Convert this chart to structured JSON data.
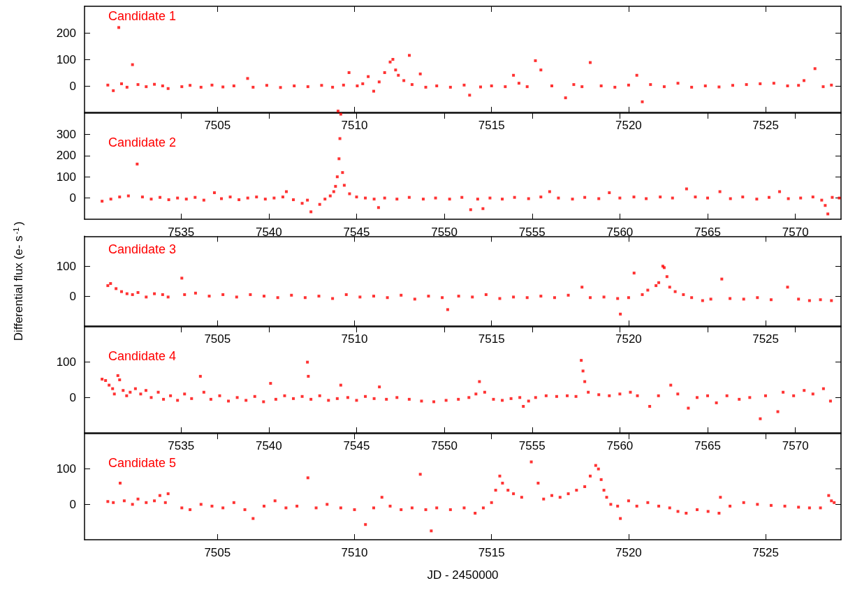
{
  "chart_data": [
    {
      "type": "scatter",
      "marker": "square",
      "xlim": [
        7500.15,
        7527.75
      ],
      "xticks": [
        7505,
        7510,
        7515,
        7520,
        7525
      ],
      "ylim": [
        -100,
        300
      ],
      "yticks": [
        0,
        100,
        200
      ],
      "series": [
        {
          "name": "Candidate 1",
          "color": "#ff0000",
          "x": [
            7501.0,
            7501.2,
            7501.4,
            7501.5,
            7501.7,
            7501.9,
            7502.1,
            7502.4,
            7502.7,
            7503.0,
            7503.2,
            7503.7,
            7504.0,
            7504.4,
            7504.8,
            7505.2,
            7505.6,
            7506.1,
            7506.3,
            7506.8,
            7507.3,
            7507.8,
            7508.3,
            7508.8,
            7509.2,
            7509.4,
            7509.6,
            7509.8,
            7510.1,
            7510.3,
            7510.5,
            7510.7,
            7510.9,
            7511.1,
            7511.3,
            7511.4,
            7511.5,
            7511.6,
            7511.8,
            7512.0,
            7512.1,
            7512.4,
            7512.6,
            7513.0,
            7513.5,
            7514.0,
            7514.2,
            7514.6,
            7515.0,
            7515.5,
            7515.8,
            7516.0,
            7516.3,
            7516.6,
            7516.8,
            7517.2,
            7517.7,
            7518.0,
            7518.3,
            7518.6,
            7519.0,
            7519.5,
            7520.0,
            7520.3,
            7520.5,
            7520.8,
            7521.3,
            7521.8,
            7522.3,
            7522.8,
            7523.3,
            7523.8,
            7524.3,
            7524.8,
            7525.3,
            7525.8,
            7526.2,
            7526.4,
            7526.8,
            7527.1,
            7527.4
          ],
          "values": [
            3,
            -18,
            220,
            8,
            -5,
            80,
            5,
            -3,
            6,
            0,
            -10,
            -3,
            2,
            -5,
            3,
            -4,
            0,
            28,
            -5,
            2,
            -6,
            0,
            -3,
            2,
            -5,
            -95,
            3,
            50,
            0,
            8,
            35,
            -20,
            15,
            50,
            90,
            100,
            60,
            40,
            20,
            115,
            5,
            45,
            -5,
            0,
            -5,
            3,
            -35,
            -4,
            0,
            -3,
            40,
            10,
            -3,
            95,
            60,
            0,
            -45,
            5,
            -3,
            88,
            0,
            -5,
            3,
            40,
            -60,
            5,
            -3,
            10,
            -5,
            0,
            -4,
            2,
            5,
            8,
            10,
            0,
            2,
            20,
            65,
            -3,
            3
          ]
        }
      ]
    },
    {
      "type": "scatter",
      "marker": "square",
      "xlim": [
        7529.5,
        7572.6
      ],
      "xticks": [
        7535,
        7540,
        7545,
        7550,
        7555,
        7560,
        7565,
        7570
      ],
      "ylim": [
        -100,
        400
      ],
      "yticks": [
        0,
        100,
        200,
        300
      ],
      "series": [
        {
          "name": "Candidate 2",
          "color": "#ff0000",
          "x": [
            7530.5,
            7531.0,
            7531.5,
            7532.0,
            7532.5,
            7532.8,
            7533.3,
            7533.8,
            7534.3,
            7534.8,
            7535.3,
            7535.8,
            7536.3,
            7536.9,
            7537.3,
            7537.8,
            7538.3,
            7538.8,
            7539.3,
            7539.8,
            7540.3,
            7540.8,
            7541.0,
            7541.4,
            7541.9,
            7542.2,
            7542.4,
            7542.9,
            7543.2,
            7543.5,
            7543.7,
            7543.8,
            7543.9,
            7544.0,
            7544.05,
            7544.1,
            7544.2,
            7544.3,
            7544.6,
            7545.0,
            7545.5,
            7546.0,
            7546.25,
            7546.6,
            7547.3,
            7548.0,
            7548.8,
            7549.5,
            7550.3,
            7551.0,
            7551.5,
            7551.9,
            7552.2,
            7552.6,
            7553.3,
            7554.0,
            7554.8,
            7555.5,
            7556.0,
            7556.5,
            7557.3,
            7558.0,
            7558.8,
            7559.4,
            7560.0,
            7560.8,
            7561.5,
            7562.3,
            7563.0,
            7563.8,
            7564.3,
            7565.0,
            7565.7,
            7566.3,
            7567.0,
            7567.8,
            7568.5,
            7569.1,
            7569.6,
            7570.3,
            7571.0,
            7571.5,
            7571.7,
            7571.85,
            7572.1,
            7572.5
          ],
          "values": [
            -15,
            -5,
            5,
            10,
            160,
            5,
            -5,
            3,
            -8,
            0,
            -5,
            3,
            -10,
            25,
            -3,
            5,
            -8,
            0,
            5,
            -5,
            0,
            5,
            30,
            -8,
            -25,
            -10,
            -65,
            -30,
            -5,
            10,
            30,
            55,
            100,
            185,
            280,
            395,
            120,
            60,
            20,
            5,
            0,
            -5,
            -45,
            0,
            -5,
            3,
            -5,
            0,
            -5,
            3,
            -55,
            -5,
            -50,
            0,
            -5,
            3,
            -3,
            5,
            30,
            0,
            -5,
            3,
            -3,
            25,
            0,
            5,
            -3,
            5,
            0,
            43,
            5,
            0,
            30,
            -3,
            5,
            -5,
            3,
            30,
            -3,
            0,
            5,
            -10,
            -35,
            -75,
            3,
            0
          ]
        }
      ]
    },
    {
      "type": "scatter",
      "marker": "square",
      "xlim": [
        7500.15,
        7527.75
      ],
      "xticks": [
        7505,
        7510,
        7515,
        7520,
        7525
      ],
      "ylim": [
        -100,
        200
      ],
      "yticks": [
        0,
        100
      ],
      "ylabel": "Differential flux (e- s$^{-1}$)",
      "series": [
        {
          "name": "Candidate 3",
          "color": "#ff0000",
          "x": [
            7501.0,
            7501.1,
            7501.3,
            7501.5,
            7501.7,
            7501.9,
            7502.1,
            7502.4,
            7502.7,
            7503.0,
            7503.2,
            7503.7,
            7503.8,
            7504.2,
            7504.7,
            7505.2,
            7505.7,
            7506.2,
            7506.7,
            7507.2,
            7507.7,
            7508.2,
            7508.7,
            7509.2,
            7509.7,
            7510.2,
            7510.7,
            7511.2,
            7511.7,
            7512.2,
            7512.7,
            7513.2,
            7513.4,
            7513.8,
            7514.3,
            7514.8,
            7515.3,
            7515.8,
            7516.3,
            7516.8,
            7517.3,
            7517.8,
            7518.3,
            7518.6,
            7519.1,
            7519.6,
            7519.7,
            7520.0,
            7520.2,
            7520.5,
            7520.7,
            7521.0,
            7521.1,
            7521.25,
            7521.3,
            7521.4,
            7521.5,
            7521.7,
            7522.0,
            7522.3,
            7522.7,
            7523.0,
            7523.4,
            7523.7,
            7524.2,
            7524.7,
            7525.2,
            7525.8,
            7526.2,
            7526.6,
            7527.0,
            7527.4
          ],
          "values": [
            35,
            42,
            25,
            15,
            8,
            5,
            12,
            -3,
            8,
            5,
            -3,
            60,
            5,
            10,
            0,
            5,
            -3,
            5,
            0,
            -5,
            3,
            -5,
            0,
            -8,
            5,
            -3,
            0,
            -5,
            3,
            -10,
            0,
            -5,
            -45,
            0,
            -3,
            5,
            -8,
            -3,
            -5,
            0,
            -5,
            3,
            30,
            -5,
            -3,
            -8,
            -60,
            -5,
            77,
            5,
            20,
            35,
            45,
            100,
            95,
            65,
            30,
            15,
            5,
            -5,
            -15,
            -10,
            57,
            -8,
            -10,
            -5,
            -12,
            30,
            -10,
            -15,
            -12,
            -15
          ]
        }
      ]
    },
    {
      "type": "scatter",
      "marker": "square",
      "xlim": [
        7529.5,
        7572.6
      ],
      "xticks": [
        7535,
        7540,
        7545,
        7550,
        7555,
        7560,
        7565,
        7570
      ],
      "ylim": [
        -100,
        200
      ],
      "yticks": [
        0,
        100
      ],
      "series": [
        {
          "name": "Candidate 4",
          "color": "#ff0000",
          "x": [
            7530.5,
            7530.7,
            7530.9,
            7531.1,
            7531.2,
            7531.4,
            7531.5,
            7531.7,
            7531.9,
            7532.1,
            7532.4,
            7532.7,
            7533.0,
            7533.3,
            7533.7,
            7534.0,
            7534.4,
            7534.8,
            7535.2,
            7535.6,
            7536.1,
            7536.3,
            7536.7,
            7537.2,
            7537.7,
            7538.2,
            7538.7,
            7539.2,
            7539.7,
            7540.1,
            7540.4,
            7540.9,
            7541.4,
            7541.9,
            7542.2,
            7542.25,
            7542.4,
            7542.9,
            7543.4,
            7543.9,
            7544.1,
            7544.5,
            7545.0,
            7545.5,
            7546.0,
            7546.3,
            7546.7,
            7547.3,
            7548.0,
            7548.7,
            7549.4,
            7550.1,
            7550.8,
            7551.4,
            7551.8,
            7552.0,
            7552.3,
            7552.8,
            7553.3,
            7553.8,
            7554.3,
            7554.5,
            7554.8,
            7555.2,
            7555.8,
            7556.4,
            7557.0,
            7557.5,
            7557.8,
            7557.9,
            7558.0,
            7558.2,
            7558.8,
            7559.4,
            7560.0,
            7560.6,
            7561.0,
            7561.7,
            7562.2,
            7562.9,
            7563.3,
            7563.9,
            7564.4,
            7565.0,
            7565.5,
            7566.1,
            7566.8,
            7567.4,
            7568.0,
            7568.3,
            7569.0,
            7569.3,
            7569.9,
            7570.5,
            7571.0,
            7571.6,
            7572.0
          ],
          "values": [
            52,
            48,
            35,
            25,
            10,
            62,
            50,
            20,
            5,
            15,
            25,
            10,
            20,
            0,
            15,
            -5,
            5,
            -8,
            10,
            -3,
            60,
            15,
            -5,
            5,
            -10,
            0,
            -8,
            3,
            -12,
            40,
            -5,
            5,
            -3,
            3,
            100,
            60,
            -5,
            5,
            -8,
            -3,
            35,
            0,
            -8,
            3,
            -3,
            30,
            -5,
            0,
            -5,
            -10,
            -12,
            -8,
            -5,
            0,
            10,
            45,
            15,
            -5,
            -8,
            -3,
            0,
            -25,
            -10,
            0,
            5,
            3,
            5,
            3,
            105,
            75,
            45,
            15,
            8,
            5,
            10,
            15,
            5,
            -25,
            5,
            35,
            10,
            -30,
            0,
            5,
            -15,
            5,
            -5,
            0,
            -60,
            5,
            -40,
            15,
            5,
            20,
            10,
            25,
            -10
          ]
        }
      ]
    },
    {
      "type": "scatter",
      "marker": "square",
      "xlim": [
        7500.15,
        7527.75
      ],
      "xticks": [
        7505,
        7510,
        7515,
        7520,
        7525
      ],
      "ylim": [
        -100,
        200
      ],
      "yticks": [
        0,
        100
      ],
      "xlabel": "JD - 2450000",
      "series": [
        {
          "name": "Candidate 5",
          "color": "#ff0000",
          "x": [
            7501.0,
            7501.2,
            7501.45,
            7501.6,
            7501.9,
            7502.1,
            7502.4,
            7502.7,
            7502.9,
            7503.1,
            7503.2,
            7503.7,
            7504.0,
            7504.4,
            7504.8,
            7505.2,
            7505.6,
            7506.0,
            7506.3,
            7506.7,
            7507.1,
            7507.5,
            7507.9,
            7508.3,
            7508.6,
            7509.0,
            7509.5,
            7510.0,
            7510.4,
            7510.7,
            7511.0,
            7511.3,
            7511.7,
            7512.1,
            7512.4,
            7512.6,
            7512.8,
            7513.0,
            7513.5,
            7514.0,
            7514.4,
            7514.7,
            7515.0,
            7515.15,
            7515.3,
            7515.4,
            7515.6,
            7515.8,
            7516.1,
            7516.45,
            7516.7,
            7516.9,
            7517.2,
            7517.5,
            7517.8,
            7518.1,
            7518.4,
            7518.6,
            7518.8,
            7518.9,
            7519.0,
            7519.1,
            7519.2,
            7519.35,
            7519.6,
            7519.7,
            7520.0,
            7520.3,
            7520.7,
            7521.1,
            7521.5,
            7521.8,
            7522.1,
            7522.5,
            7522.9,
            7523.3,
            7523.35,
            7523.7,
            7524.2,
            7524.7,
            7525.2,
            7525.7,
            7526.2,
            7526.6,
            7527.0,
            7527.3,
            7527.4,
            7527.5
          ],
          "values": [
            8,
            5,
            60,
            10,
            0,
            15,
            5,
            10,
            25,
            5,
            30,
            -10,
            -15,
            0,
            -5,
            -10,
            5,
            -15,
            -40,
            -5,
            10,
            -10,
            -5,
            75,
            -10,
            0,
            -10,
            -15,
            -57,
            -10,
            20,
            -5,
            -15,
            -10,
            85,
            -15,
            -75,
            -10,
            -15,
            -10,
            -25,
            -10,
            5,
            40,
            80,
            60,
            40,
            30,
            20,
            120,
            60,
            15,
            25,
            20,
            30,
            40,
            50,
            80,
            110,
            100,
            70,
            40,
            20,
            0,
            -5,
            -40,
            10,
            -5,
            5,
            -5,
            -10,
            -20,
            -25,
            -15,
            -20,
            -25,
            20,
            -5,
            5,
            0,
            -3,
            -5,
            -8,
            -10,
            -10,
            25,
            10,
            5
          ]
        }
      ]
    }
  ]
}
